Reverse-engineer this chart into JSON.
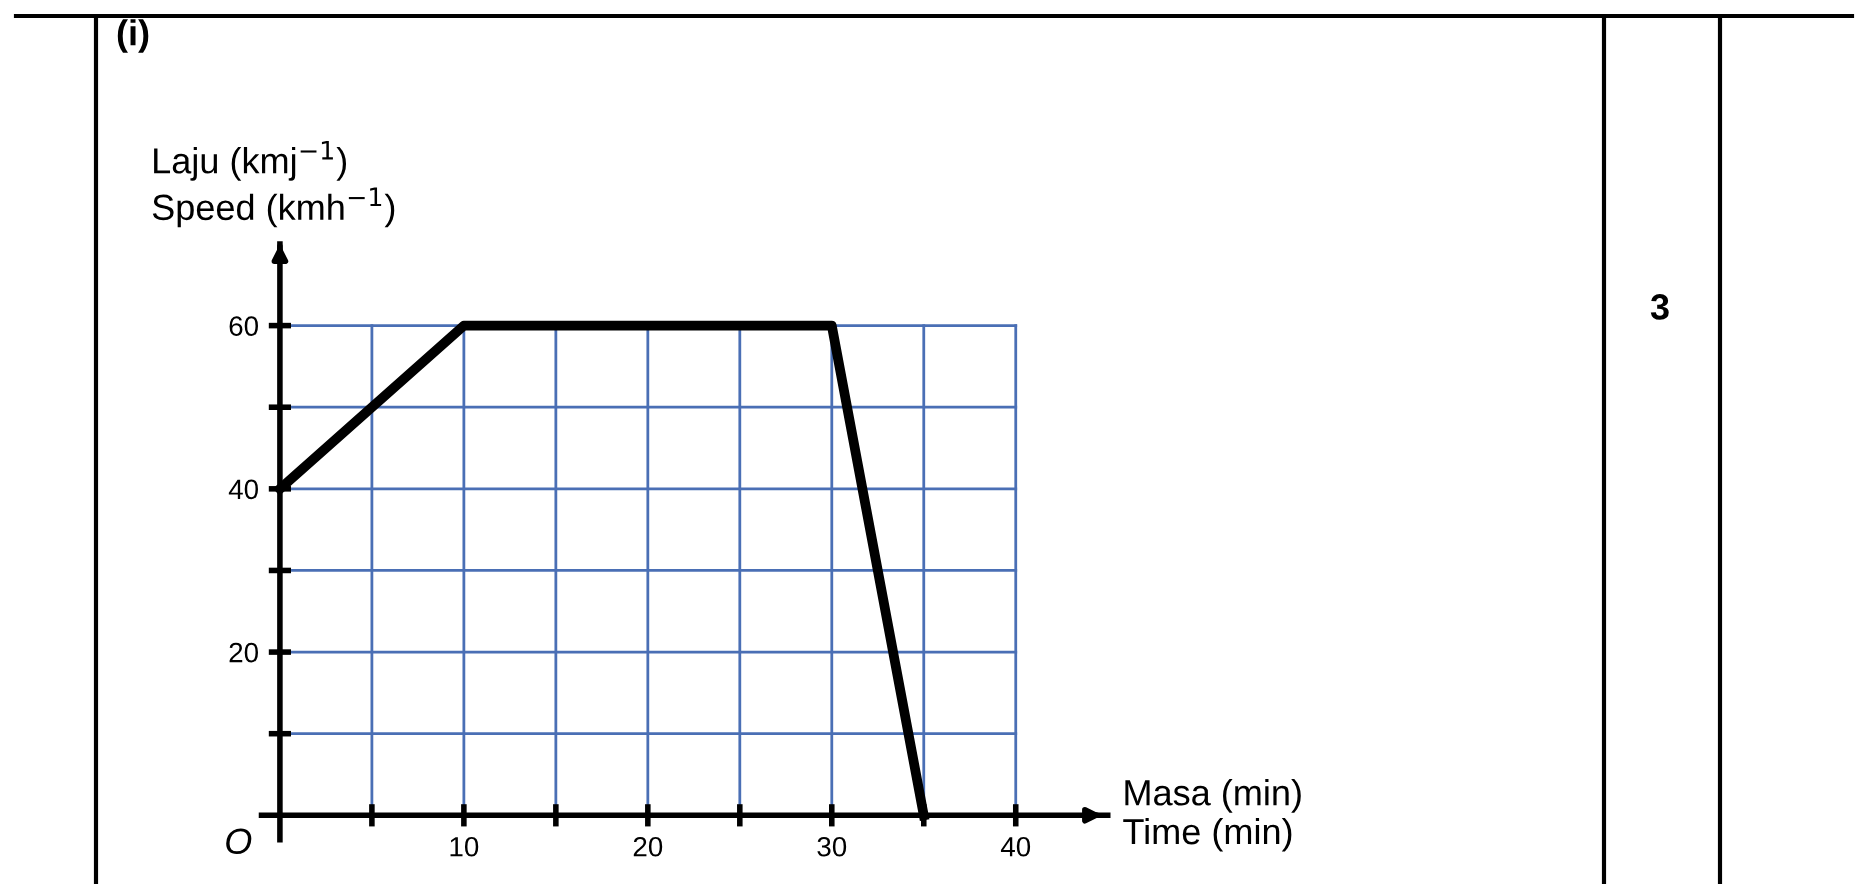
{
  "chart_data": {
    "type": "line",
    "xlabel": "Masa (min)\nTime (min)",
    "ylabel": "Laju (kmj$^{−1}$)\nSpeed (kmh$^{−1}$)",
    "x": [
      0,
      10,
      30,
      35
    ],
    "series": [
      {
        "color": "#000000",
        "values": [
          40,
          60,
          60,
          0
        ]
      }
    ],
    "xlim": [
      -1,
      45
    ],
    "ylim": [
      -3,
      70
    ],
    "xticks": [
      {
        "value": 5,
        "label": null
      },
      10,
      {
        "value": 15,
        "label": null
      },
      20,
      {
        "value": 25,
        "label": null
      },
      30,
      {
        "value": 35,
        "label": null
      },
      40
    ],
    "yticks": [
      {
        "value": 10,
        "label": null
      },
      20,
      {
        "value": 30,
        "label": null
      },
      40,
      {
        "value": 50,
        "label": null
      },
      60
    ],
    "grid": true,
    "marker": "none",
    "line_style": "solid",
    "annotations": [
      "(i)",
      "3",
      "O"
    ]
  }
}
